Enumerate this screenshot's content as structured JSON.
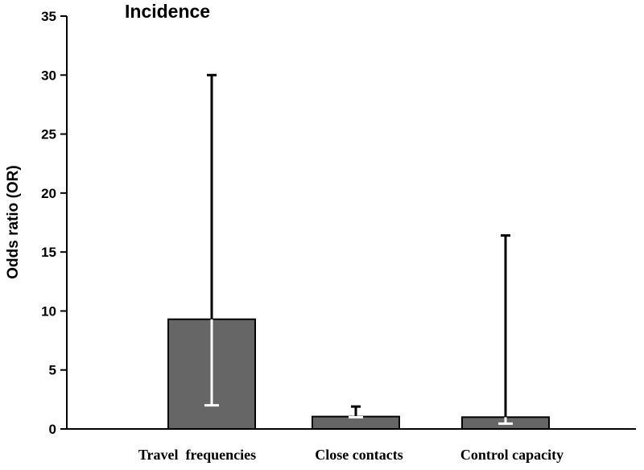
{
  "chart_data": {
    "type": "bar",
    "title": "Incidence",
    "xlabel": "",
    "ylabel": "Odds ratio (OR)",
    "ylim": [
      0,
      35
    ],
    "yticks": [
      0,
      5,
      10,
      15,
      20,
      25,
      30,
      35
    ],
    "grid": false,
    "categories": [
      "Travel  frequencies",
      "Close contacts",
      "Control capacity"
    ],
    "values": [
      9.3,
      1.05,
      1.0
    ],
    "error_low": [
      2.0,
      1.0,
      0.45
    ],
    "error_high": [
      30.0,
      1.9,
      16.4
    ],
    "colors": {
      "bar_fill": "#666666",
      "bar_stroke": "#000000",
      "axis": "#000000",
      "error_inside": "#ffffff",
      "error_outside": "#000000"
    }
  }
}
